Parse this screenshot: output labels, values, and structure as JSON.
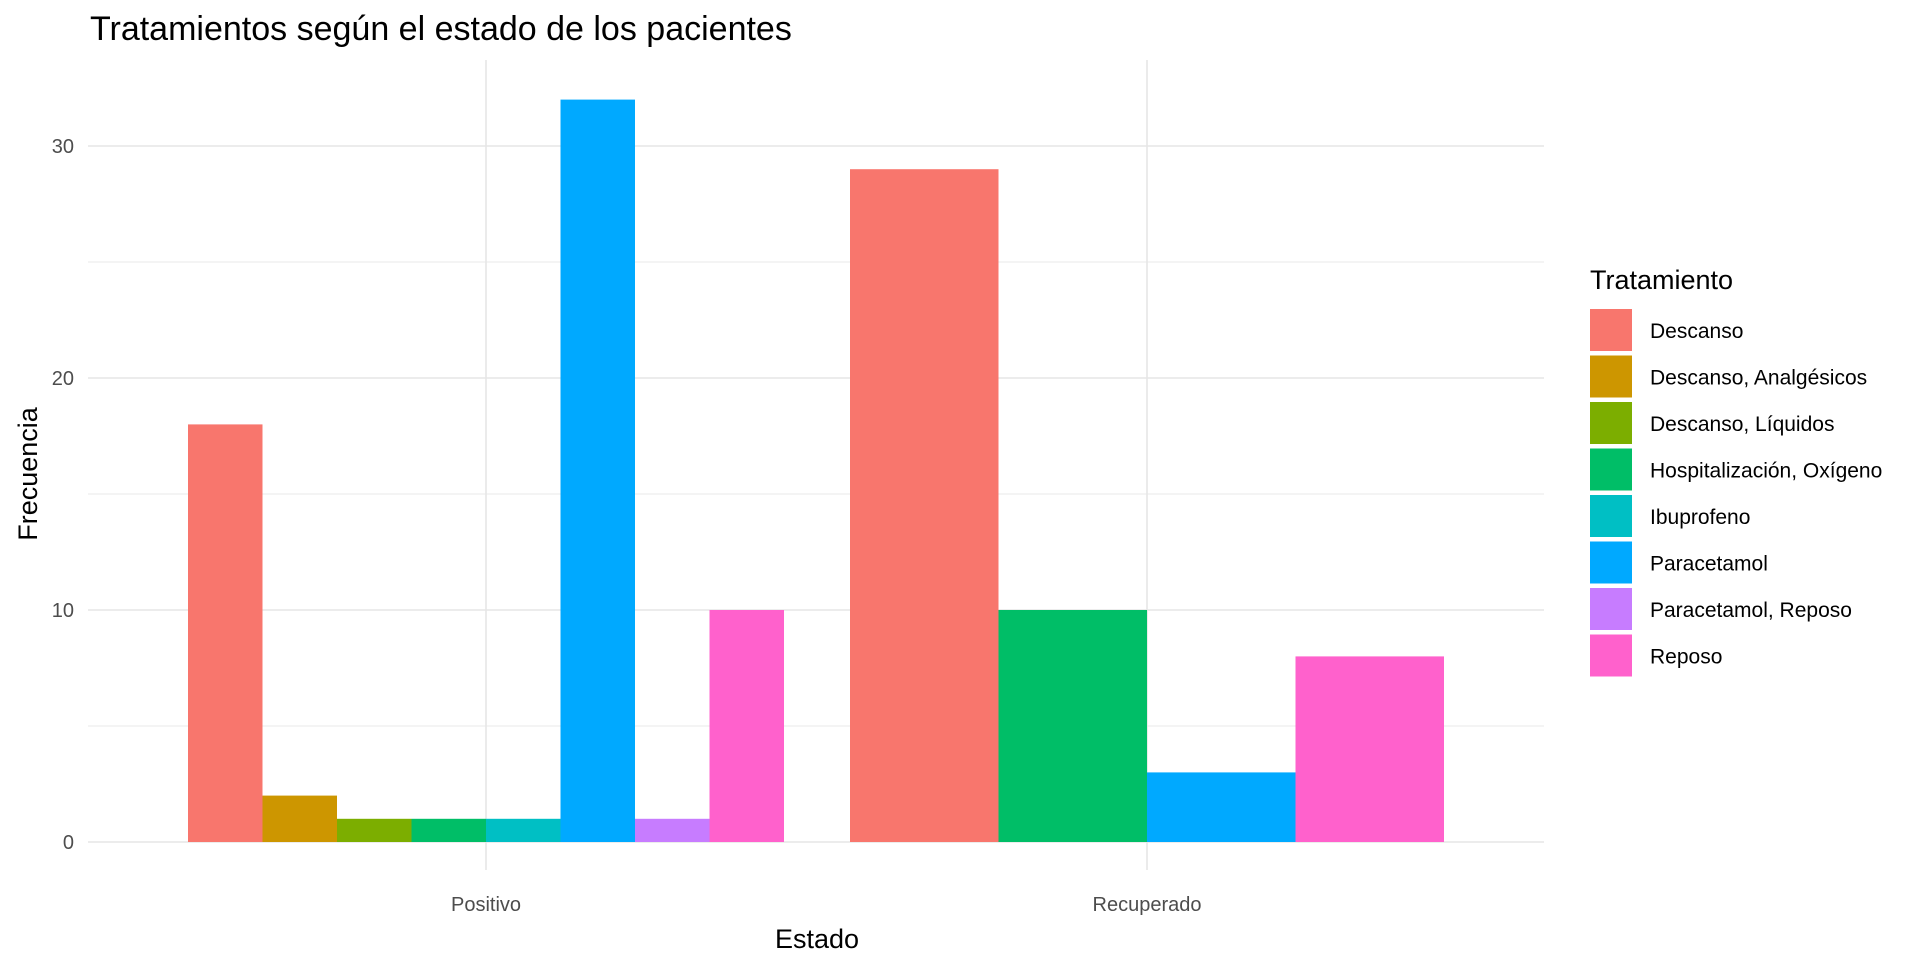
{
  "chart_data": {
    "type": "bar",
    "title": "Tratamientos según el estado de los pacientes",
    "xlabel": "Estado",
    "ylabel": "Frecuencia",
    "categories": [
      "Positivo",
      "Recuperado"
    ],
    "ylim": [
      0,
      33.6
    ],
    "yticks": [
      0,
      10,
      20,
      30
    ],
    "grid": true,
    "legend": {
      "title": "Tratamiento",
      "position": "right"
    },
    "series": [
      {
        "name": "Descanso",
        "color": "#F8766D",
        "values": [
          18,
          29
        ]
      },
      {
        "name": "Descanso, Analgésicos",
        "color": "#CD9600",
        "values": [
          2,
          null
        ]
      },
      {
        "name": "Descanso, Líquidos",
        "color": "#7CAE00",
        "values": [
          1,
          null
        ]
      },
      {
        "name": "Hospitalización, Oxígeno",
        "color": "#00BE67",
        "values": [
          1,
          10
        ]
      },
      {
        "name": "Ibuprofeno",
        "color": "#00BFC4",
        "values": [
          1,
          null
        ]
      },
      {
        "name": "Paracetamol",
        "color": "#00A9FF",
        "values": [
          32,
          3
        ]
      },
      {
        "name": "Paracetamol, Reposo",
        "color": "#C77CFF",
        "values": [
          1,
          null
        ]
      },
      {
        "name": "Reposo",
        "color": "#FF61CC",
        "values": [
          10,
          8
        ]
      }
    ]
  }
}
